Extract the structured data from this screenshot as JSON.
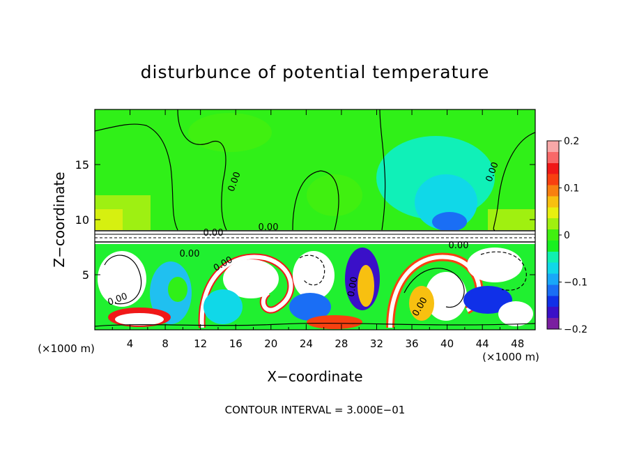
{
  "chart_data": {
    "type": "heatmap",
    "title": "disturbunce of potential temperature",
    "xlabel": "X−coordinate",
    "ylabel": "Z−coordinate",
    "x_unit_left": "(×1000 m)",
    "x_unit_right": "(×1000 m)",
    "xlim": [
      0,
      50
    ],
    "ylim": [
      0,
      20
    ],
    "x_ticks": [
      "4",
      "8",
      "12",
      "16",
      "20",
      "24",
      "28",
      "32",
      "36",
      "40",
      "44",
      "48"
    ],
    "x_tick_values": [
      4,
      8,
      12,
      16,
      20,
      24,
      28,
      32,
      36,
      40,
      44,
      48
    ],
    "y_ticks": [
      "5",
      "10",
      "15"
    ],
    "y_tick_values": [
      5,
      10,
      15
    ],
    "colorbar": {
      "range": [
        -0.2,
        0.2
      ],
      "tick_labels": [
        "0.2",
        "0.1",
        "0",
        "−0.1",
        "−0.2"
      ],
      "tick_values": [
        0.2,
        0.1,
        0,
        -0.1,
        -0.2
      ],
      "colors": [
        "#7a1fa0",
        "#3a10c8",
        "#1030e8",
        "#1a6ef5",
        "#18a8f8",
        "#10d8e8",
        "#10f0b0",
        "#18f020",
        "#40f010",
        "#a0f010",
        "#e8f010",
        "#f8c010",
        "#f88010",
        "#f84010",
        "#f01818",
        "#f86868",
        "#f8a8a8"
      ]
    },
    "contour_labels": [
      "0.00",
      "0.00",
      "0.00",
      "0.00",
      "0.00",
      "0.00",
      "0.00",
      "0.00",
      "0.00",
      "0.00"
    ],
    "footer": "CONTOUR INTERVAL = 3.000E−01"
  }
}
